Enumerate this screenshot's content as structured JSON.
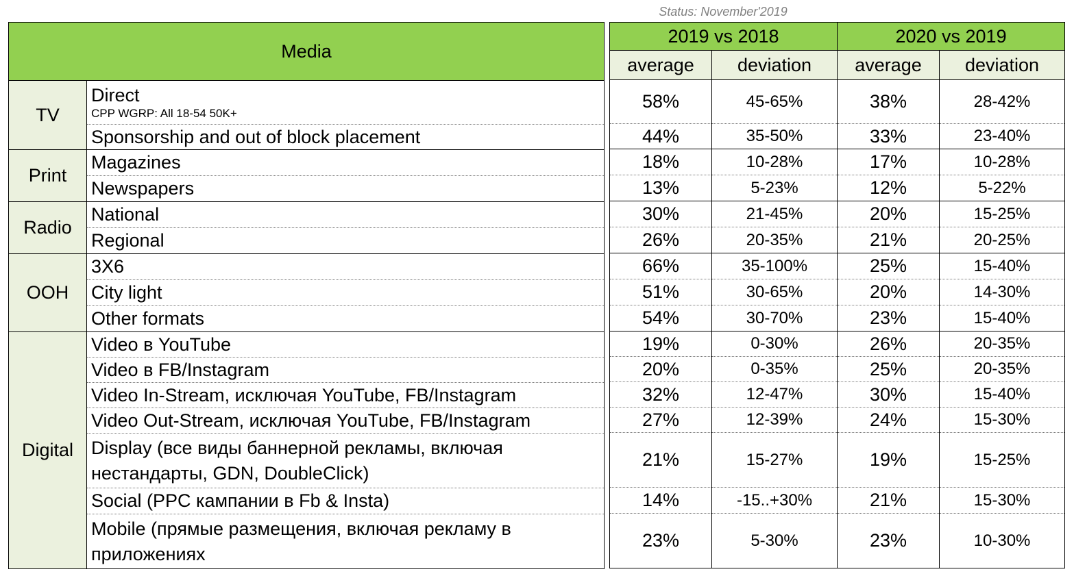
{
  "status": "Status: November'2019",
  "header": {
    "media": "Media",
    "period1": "2019 vs 2018",
    "period2": "2020 vs 2019",
    "average": "average",
    "deviation": "deviation"
  },
  "groups": [
    {
      "name": "TV",
      "rows": [
        {
          "label": "Direct",
          "sublabel": "CPP WGRP: All 18-54 50K+",
          "avg1": "58%",
          "dev1": "45-65%",
          "avg2": "38%",
          "dev2": "28-42%"
        },
        {
          "label": "Sponsorship and out of block placement",
          "avg1": "44%",
          "dev1": "35-50%",
          "avg2": "33%",
          "dev2": "23-40%"
        }
      ]
    },
    {
      "name": "Print",
      "rows": [
        {
          "label": "Magazines",
          "avg1": "18%",
          "dev1": "10-28%",
          "avg2": "17%",
          "dev2": "10-28%"
        },
        {
          "label": "Newspapers",
          "avg1": "13%",
          "dev1": "5-23%",
          "avg2": "12%",
          "dev2": "5-22%"
        }
      ]
    },
    {
      "name": "Radio",
      "rows": [
        {
          "label": "National",
          "avg1": "30%",
          "dev1": "21-45%",
          "avg2": "20%",
          "dev2": "15-25%"
        },
        {
          "label": "Regional",
          "avg1": "26%",
          "dev1": "20-35%",
          "avg2": "21%",
          "dev2": "20-25%"
        }
      ]
    },
    {
      "name": "OOH",
      "rows": [
        {
          "label": "3X6",
          "avg1": "66%",
          "dev1": "35-100%",
          "avg2": "25%",
          "dev2": "15-40%"
        },
        {
          "label": "City light",
          "avg1": "51%",
          "dev1": "30-65%",
          "avg2": "20%",
          "dev2": "14-30%"
        },
        {
          "label": "Other formats",
          "avg1": "54%",
          "dev1": "30-70%",
          "avg2": "23%",
          "dev2": "15-40%"
        }
      ]
    },
    {
      "name": "Digital",
      "rows": [
        {
          "label": "Video в YouTube",
          "avg1": "19%",
          "dev1": "0-30%",
          "avg2": "26%",
          "dev2": "20-35%"
        },
        {
          "label": "Video в FB/Instagram",
          "avg1": "20%",
          "dev1": "0-35%",
          "avg2": "25%",
          "dev2": "20-35%"
        },
        {
          "label": "Video In-Stream, исключая YouTube, FB/Instagram",
          "avg1": "32%",
          "dev1": "12-47%",
          "avg2": "30%",
          "dev2": "15-40%"
        },
        {
          "label": "Video Out-Stream, исключая YouTube, FB/Instagram",
          "avg1": "27%",
          "dev1": "12-39%",
          "avg2": "24%",
          "dev2": "15-30%"
        },
        {
          "label": "Display (все виды баннерной рекламы, включая нестандарты, GDN, DoubleClick)",
          "avg1": "21%",
          "dev1": "15-27%",
          "avg2": "19%",
          "dev2": "15-25%"
        },
        {
          "label": "Social (PPC кампании в Fb & Insta)",
          "avg1": "14%",
          "dev1": "-15..+30%",
          "avg2": "21%",
          "dev2": "15-30%"
        },
        {
          "label": "Mobile (прямые размещения, включая рекламу в приложениях",
          "avg1": "23%",
          "dev1": "5-30%",
          "avg2": "23%",
          "dev2": "10-30%"
        }
      ]
    }
  ]
}
